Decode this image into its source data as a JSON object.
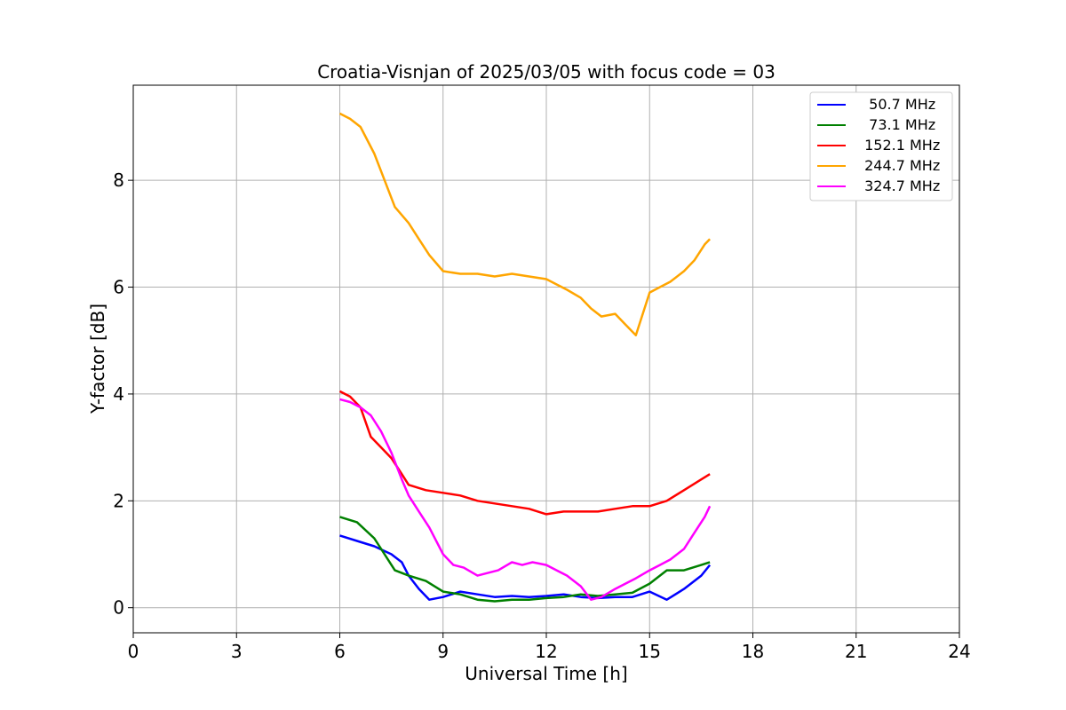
{
  "chart_data": {
    "type": "line",
    "title": "Croatia-Visnjan of 2025/03/05 with focus code = 03",
    "xlabel": "Universal Time [h]",
    "ylabel": "Y-factor [dB]",
    "xlim": [
      0,
      24
    ],
    "ylim": [
      -0.47,
      9.78
    ],
    "xticks": [
      0,
      3,
      6,
      9,
      12,
      15,
      18,
      21,
      24
    ],
    "yticks": [
      0,
      2,
      4,
      6,
      8
    ],
    "grid": true,
    "legend_position": "top-right",
    "series": [
      {
        "name": "  50.7 MHz",
        "color": "#0000ff",
        "x": [
          6.0,
          6.5,
          7.0,
          7.5,
          7.8,
          8.0,
          8.3,
          8.6,
          9.0,
          9.5,
          10.0,
          10.5,
          11.0,
          11.5,
          12.0,
          12.5,
          13.0,
          13.5,
          14.0,
          14.5,
          15.0,
          15.5,
          16.0,
          16.5,
          16.75
        ],
        "y": [
          1.35,
          1.25,
          1.15,
          1.0,
          0.85,
          0.6,
          0.35,
          0.15,
          0.2,
          0.3,
          0.25,
          0.2,
          0.22,
          0.2,
          0.22,
          0.25,
          0.2,
          0.18,
          0.2,
          0.2,
          0.3,
          0.15,
          0.35,
          0.6,
          0.8
        ]
      },
      {
        "name": "  73.1 MHz",
        "color": "#008000",
        "x": [
          6.0,
          6.5,
          7.0,
          7.3,
          7.6,
          8.0,
          8.5,
          9.0,
          9.5,
          10.0,
          10.5,
          11.0,
          11.5,
          12.0,
          12.5,
          13.0,
          13.5,
          14.0,
          14.5,
          15.0,
          15.5,
          16.0,
          16.5,
          16.75
        ],
        "y": [
          1.7,
          1.6,
          1.3,
          1.0,
          0.7,
          0.6,
          0.5,
          0.3,
          0.25,
          0.15,
          0.12,
          0.15,
          0.15,
          0.18,
          0.2,
          0.25,
          0.22,
          0.25,
          0.28,
          0.45,
          0.7,
          0.7,
          0.8,
          0.85
        ]
      },
      {
        "name": " 152.1 MHz",
        "color": "#ff0000",
        "x": [
          6.0,
          6.3,
          6.6,
          6.9,
          7.2,
          7.5,
          7.8,
          8.0,
          8.5,
          9.0,
          9.5,
          10.0,
          10.5,
          11.0,
          11.5,
          12.0,
          12.5,
          13.0,
          13.5,
          14.0,
          14.5,
          15.0,
          15.5,
          16.0,
          16.5,
          16.75
        ],
        "y": [
          4.05,
          3.95,
          3.75,
          3.2,
          3.0,
          2.8,
          2.5,
          2.3,
          2.2,
          2.15,
          2.1,
          2.0,
          1.95,
          1.9,
          1.85,
          1.75,
          1.8,
          1.8,
          1.8,
          1.85,
          1.9,
          1.9,
          2.0,
          2.2,
          2.4,
          2.5
        ]
      },
      {
        "name": " 244.7 MHz",
        "color": "#ffa500",
        "x": [
          6.0,
          6.3,
          6.6,
          7.0,
          7.3,
          7.6,
          8.0,
          8.3,
          8.6,
          9.0,
          9.5,
          10.0,
          10.5,
          11.0,
          11.5,
          12.0,
          12.3,
          12.6,
          13.0,
          13.3,
          13.6,
          14.0,
          14.3,
          14.6,
          15.0,
          15.3,
          15.6,
          16.0,
          16.3,
          16.6,
          16.75
        ],
        "y": [
          9.25,
          9.15,
          9.0,
          8.5,
          8.0,
          7.5,
          7.2,
          6.9,
          6.6,
          6.3,
          6.25,
          6.25,
          6.2,
          6.25,
          6.2,
          6.15,
          6.05,
          5.95,
          5.8,
          5.6,
          5.45,
          5.5,
          5.3,
          5.1,
          5.9,
          6.0,
          6.1,
          6.3,
          6.5,
          6.8,
          6.9
        ]
      },
      {
        "name": " 324.7 MHz",
        "color": "#ff00ff",
        "x": [
          6.0,
          6.3,
          6.6,
          6.9,
          7.2,
          7.5,
          7.8,
          8.0,
          8.3,
          8.6,
          9.0,
          9.3,
          9.6,
          10.0,
          10.3,
          10.6,
          11.0,
          11.3,
          11.6,
          12.0,
          12.3,
          12.6,
          13.0,
          13.3,
          13.6,
          14.0,
          14.3,
          14.6,
          15.0,
          15.3,
          15.6,
          16.0,
          16.3,
          16.6,
          16.75
        ],
        "y": [
          3.9,
          3.85,
          3.75,
          3.6,
          3.3,
          2.9,
          2.4,
          2.1,
          1.8,
          1.5,
          1.0,
          0.8,
          0.75,
          0.6,
          0.65,
          0.7,
          0.85,
          0.8,
          0.85,
          0.8,
          0.7,
          0.6,
          0.4,
          0.15,
          0.2,
          0.35,
          0.45,
          0.55,
          0.7,
          0.8,
          0.9,
          1.1,
          1.4,
          1.7,
          1.9
        ]
      }
    ]
  }
}
